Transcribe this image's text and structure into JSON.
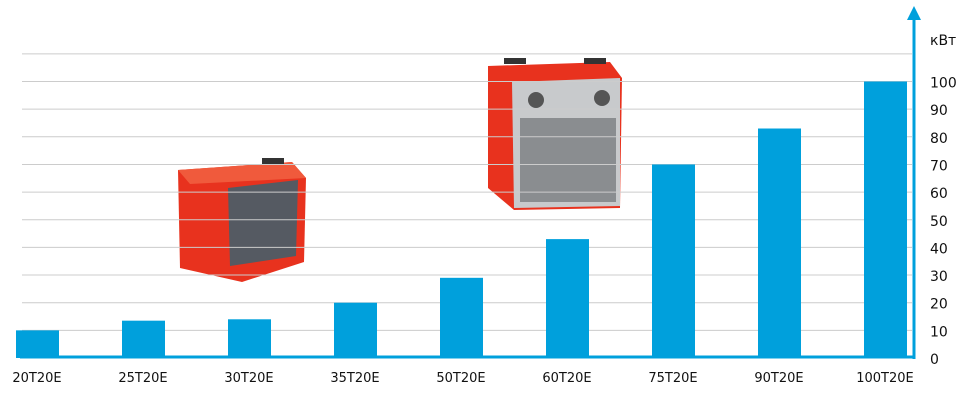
{
  "chart_data": {
    "type": "bar",
    "categories": [
      "20T20E",
      "25T20E",
      "30T20E",
      "35T20E",
      "50T20E",
      "60T20E",
      "75T20E",
      "90T20E",
      "100T20E"
    ],
    "values": [
      10,
      13.5,
      14,
      20,
      29,
      43,
      70,
      83,
      100
    ],
    "ylabel": "кВт",
    "ylim": [
      0,
      110
    ],
    "yticks": [
      0,
      10,
      20,
      30,
      40,
      50,
      60,
      70,
      80,
      90,
      100
    ],
    "grid": true,
    "axis_side": "right",
    "colors": {
      "bar": "#00a0dc",
      "axis": "#00a0dc",
      "grid": "#cccccc"
    }
  }
}
